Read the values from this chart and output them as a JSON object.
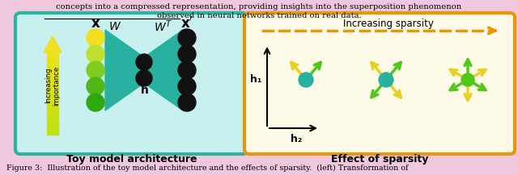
{
  "bg_color": "#f2c8df",
  "top_text_line1": "concepts into a compressed representation, providing insights into the superposition phenomenon",
  "top_text_line2": "observed in neural networks trained on real data.",
  "caption": "Figure 3:  Illustration of the toy model architecture and the effects of sparsity.  (left) Transformation of",
  "left_box_color": "#2ab5a0",
  "left_box_fill": "#c8f0ee",
  "right_box_color": "#e8960a",
  "right_box_fill": "#fdfbe8",
  "left_title": "Toy model architecture",
  "right_title": "Effect of sparsity",
  "increasing_sparsity_text": "Increasing sparsity",
  "arrow_yellow": "#e8d020",
  "arrow_green": "#50c818",
  "teal_color": "#28b0a0",
  "node_yellow": "#f0e020",
  "node_black": "#111111",
  "h1_label": "h₁",
  "h2_label": "h₂",
  "node_colors_x": [
    "#f0e020",
    "#c0e030",
    "#80cc20",
    "#50b818",
    "#30a810"
  ],
  "arrow_importance_bottom": "#c0e020",
  "arrow_importance_top": "#f0e020"
}
